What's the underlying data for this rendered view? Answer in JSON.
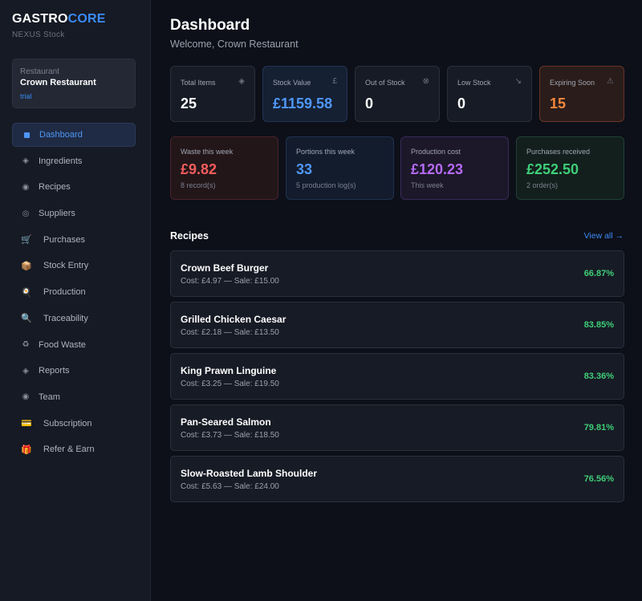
{
  "brand": {
    "part1": "GASTRO",
    "part2": "CORE",
    "subtitle": "NEXUS Stock",
    "accent_color": "#3b8bf5"
  },
  "restaurant": {
    "label": "Restaurant",
    "name": "Crown Restaurant",
    "plan": "trial"
  },
  "sidebar": {
    "items": [
      {
        "label": "Dashboard",
        "icon": "square-icon",
        "active": true
      },
      {
        "label": "Ingredients",
        "icon": "diamond-icon",
        "glyph": "◈"
      },
      {
        "label": "Recipes",
        "icon": "circle-icon",
        "glyph": "◉"
      },
      {
        "label": "Suppliers",
        "icon": "target-icon",
        "glyph": "◎"
      },
      {
        "label": "Purchases",
        "icon": "cart-icon",
        "glyph": "🛒"
      },
      {
        "label": "Stock Entry",
        "icon": "package-icon",
        "glyph": "📦"
      },
      {
        "label": "Production",
        "icon": "cooking-icon",
        "glyph": "🍳"
      },
      {
        "label": "Traceability",
        "icon": "magnifier-icon",
        "glyph": "🔍"
      },
      {
        "label": "Food Waste",
        "icon": "recycle-icon",
        "glyph": "♻"
      },
      {
        "label": "Reports",
        "icon": "diamond-icon",
        "glyph": "◈"
      },
      {
        "label": "Team",
        "icon": "circle-icon",
        "glyph": "◉"
      },
      {
        "label": "Subscription",
        "icon": "credit-card-icon",
        "glyph": "💳"
      },
      {
        "label": "Refer & Earn",
        "icon": "gift-icon",
        "glyph": "🎁"
      }
    ]
  },
  "header": {
    "title": "Dashboard",
    "welcome": "Welcome, Crown Restaurant"
  },
  "stats": [
    {
      "label": "Total Items",
      "value": "25",
      "icon": "diamond-icon",
      "glyph": "◈"
    },
    {
      "label": "Stock Value",
      "value": "£1159.58",
      "icon": "pound-icon",
      "glyph": "£"
    },
    {
      "label": "Out of Stock",
      "value": "0",
      "icon": "cross-circle-icon",
      "glyph": "⊗"
    },
    {
      "label": "Low Stock",
      "value": "0",
      "icon": "arrow-down-right-icon",
      "glyph": "↘"
    },
    {
      "label": "Expiring Soon",
      "value": "15",
      "icon": "warning-icon",
      "glyph": "⚠"
    }
  ],
  "weekly": [
    {
      "label": "Waste this week",
      "value": "£9.82",
      "sub": "8 record(s)"
    },
    {
      "label": "Portions this week",
      "value": "33",
      "sub": "5 production log(s)"
    },
    {
      "label": "Production cost",
      "value": "£120.23",
      "sub": "This week"
    },
    {
      "label": "Purchases received",
      "value": "£252.50",
      "sub": "2 order(s)"
    }
  ],
  "recipes_section": {
    "title": "Recipes",
    "view_all": "View all →"
  },
  "recipes": [
    {
      "name": "Crown Beef Burger",
      "cost": "Cost: £4.97 — Sale: £15.00",
      "margin": "66.87%"
    },
    {
      "name": "Grilled Chicken Caesar",
      "cost": "Cost: £2.18 — Sale: £13.50",
      "margin": "83.85%"
    },
    {
      "name": "King Prawn Linguine",
      "cost": "Cost: £3.25 — Sale: £19.50",
      "margin": "83.36%"
    },
    {
      "name": "Pan-Seared Salmon",
      "cost": "Cost: £3.73 — Sale: £18.50",
      "margin": "79.81%"
    },
    {
      "name": "Slow-Roasted Lamb Shoulder",
      "cost": "Cost: £5.63 — Sale: £24.00",
      "margin": "76.56%"
    }
  ]
}
